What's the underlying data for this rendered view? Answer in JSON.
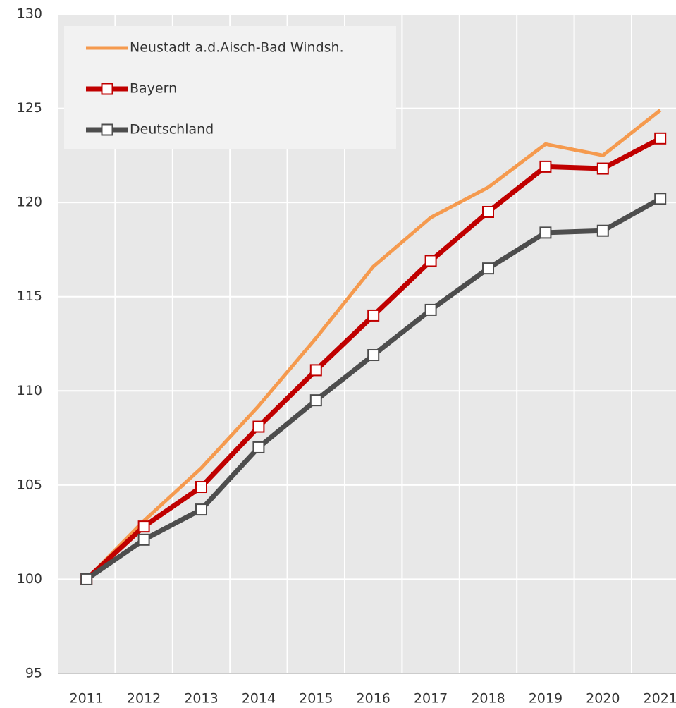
{
  "chart_data": {
    "type": "line",
    "categories": [
      "2011",
      "2012",
      "2013",
      "2014",
      "2015",
      "2016",
      "2017",
      "2018",
      "2019",
      "2020",
      "2021"
    ],
    "series": [
      {
        "name": "Neustadt a.d.Aisch-Bad Windsh.",
        "color": "#f59a4e",
        "marker": "none",
        "values": [
          100,
          103.1,
          105.9,
          109.2,
          112.8,
          116.6,
          119.2,
          120.8,
          123.1,
          122.5,
          124.9
        ]
      },
      {
        "name": "Bayern",
        "color": "#c00000",
        "marker": "square",
        "values": [
          100,
          102.8,
          104.9,
          108.1,
          111.1,
          114.0,
          116.9,
          119.5,
          121.9,
          121.8,
          123.4
        ]
      },
      {
        "name": "Deutschland",
        "color": "#4d4d4d",
        "marker": "square",
        "values": [
          100,
          102.1,
          103.7,
          107.0,
          109.5,
          111.9,
          114.3,
          116.5,
          118.4,
          118.5,
          120.2
        ]
      }
    ],
    "ylim": [
      95,
      130
    ],
    "yticks": [
      95,
      100,
      105,
      110,
      115,
      120,
      125,
      130
    ],
    "grid": true,
    "legend": "top-left"
  }
}
